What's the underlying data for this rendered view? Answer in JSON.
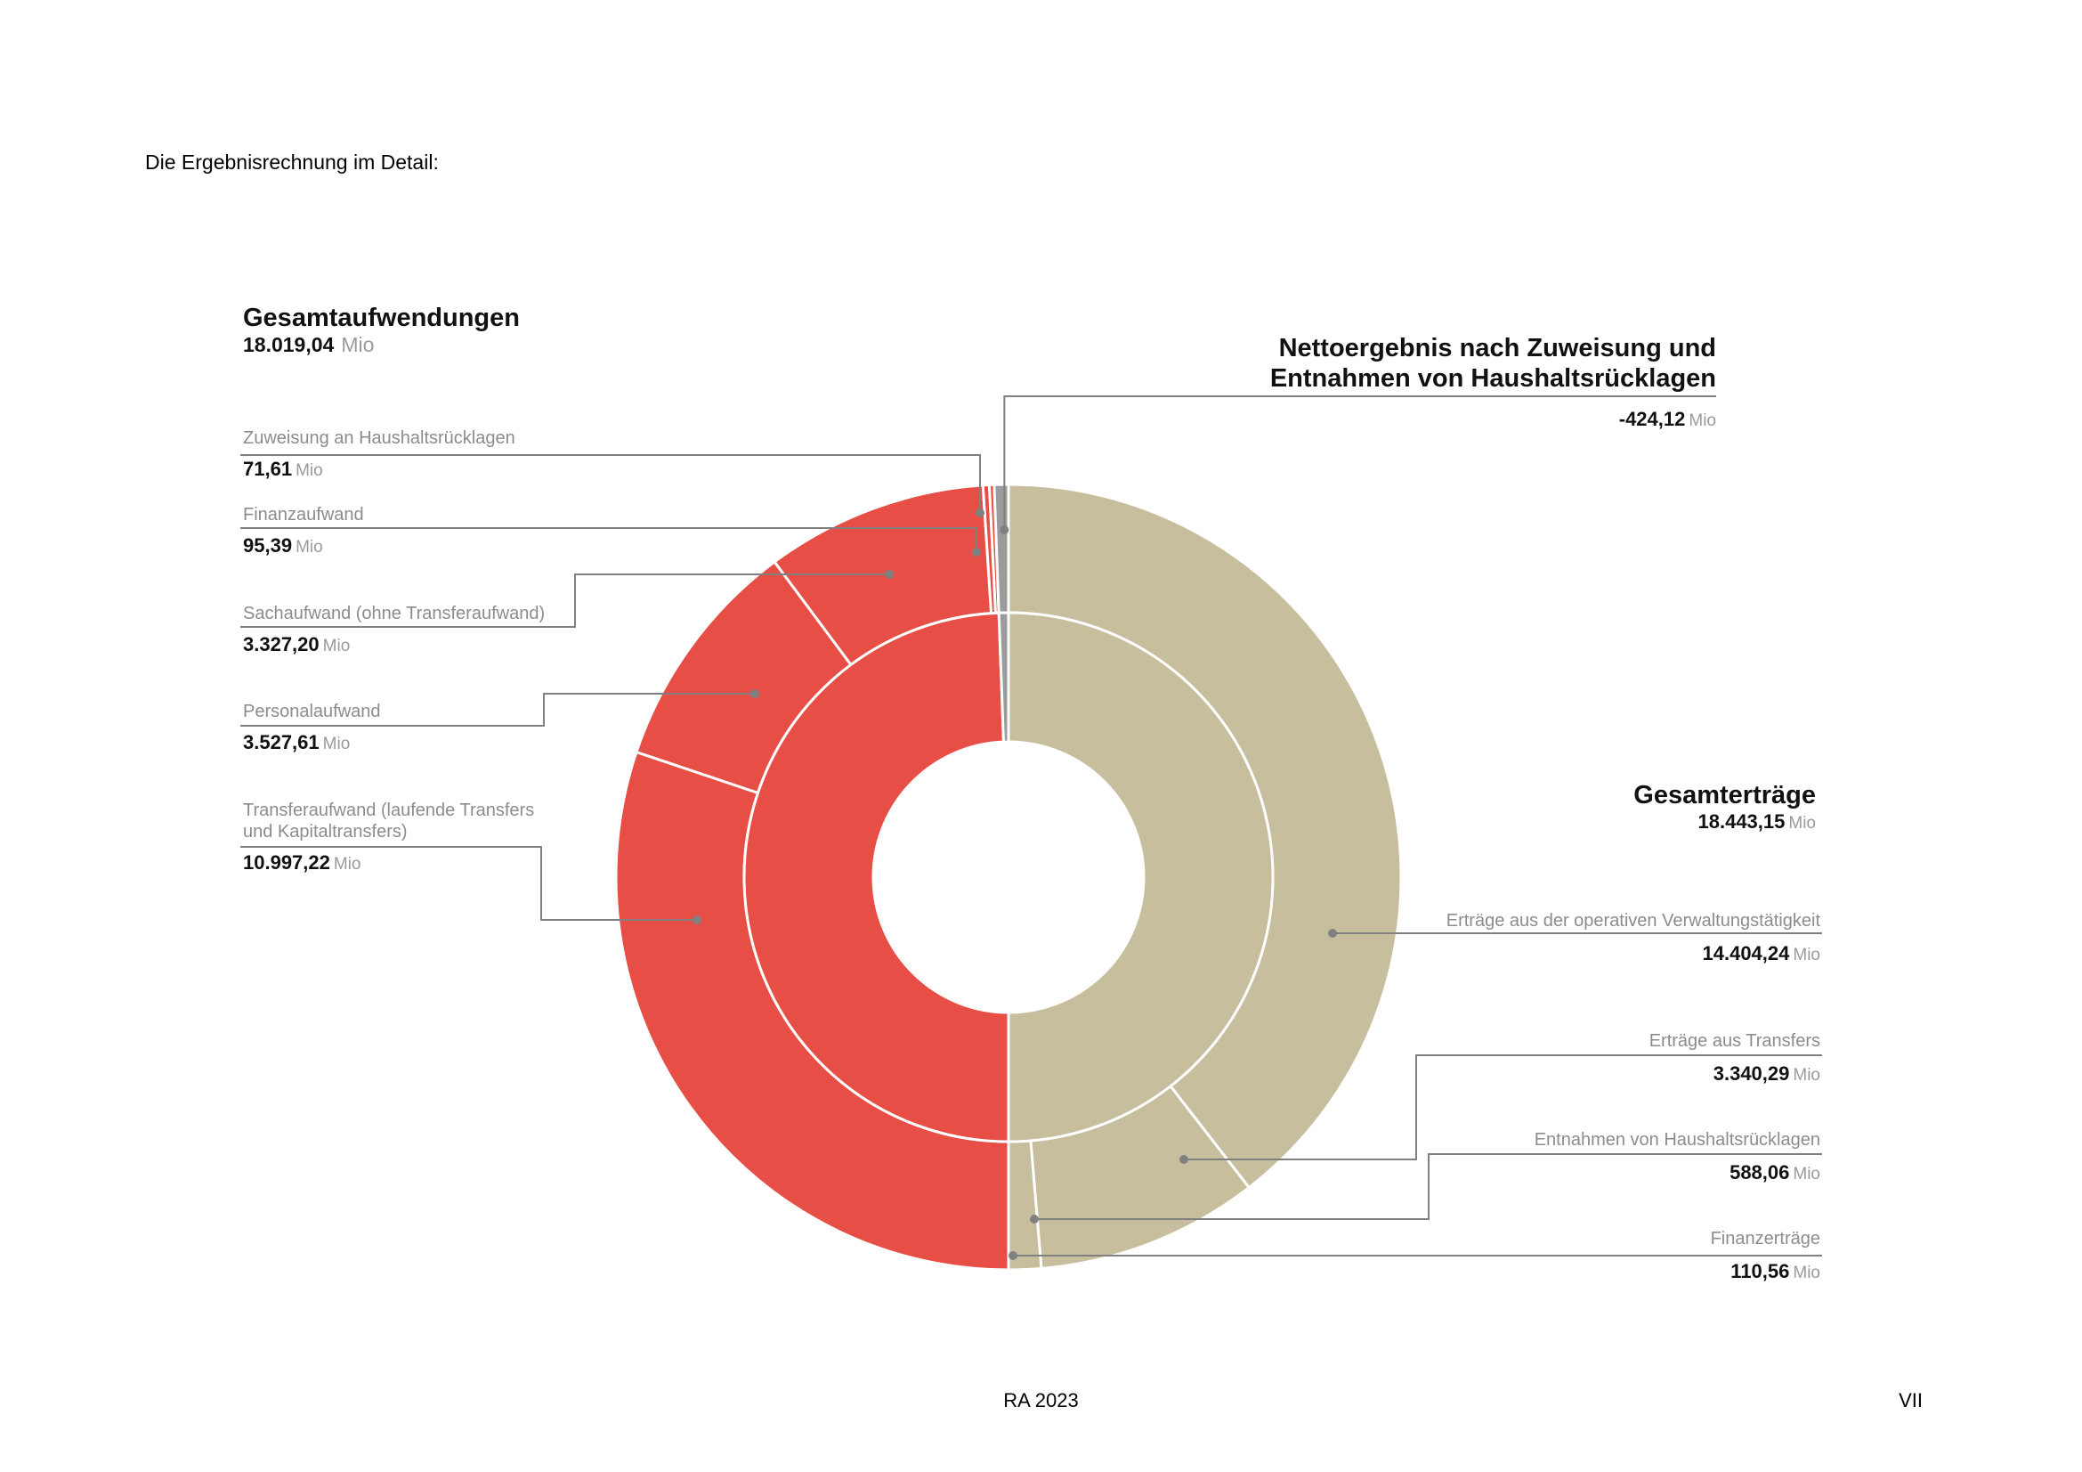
{
  "intro": "Die Ergebnisrechnung im Detail:",
  "footer": {
    "center": "RA 2023",
    "page": "VII"
  },
  "unit": "Mio",
  "colors": {
    "expense": "#E64E46",
    "income": "#C6BE9C",
    "net": "#9B9B9B",
    "leader": "#808080"
  },
  "chart_data": {
    "type": "sunburst",
    "title": "",
    "groups": [
      {
        "key": "expense",
        "label": "Gesamtaufwendungen",
        "value": 18019.04,
        "value_text": "18.019,04",
        "items": [
          {
            "label": "Zuweisung an Haushaltsrücklagen",
            "value": 71.61,
            "value_text": "71,61"
          },
          {
            "label": "Finanzaufwand",
            "value": 95.39,
            "value_text": "95,39"
          },
          {
            "label": "Sachaufwand (ohne Transferaufwand)",
            "value": 3327.2,
            "value_text": "3.327,20"
          },
          {
            "label": "Personalaufwand",
            "value": 3527.61,
            "value_text": "3.527,61"
          },
          {
            "label": "Transferaufwand (laufende Transfers und Kapitaltransfers)",
            "value": 10997.22,
            "value_text": "10.997,22"
          }
        ]
      },
      {
        "key": "net",
        "label": "Nettoergebnis nach Zuweisung und Entnahmen von Haushaltsrücklagen",
        "value": -424.12,
        "value_text": "-424,12"
      },
      {
        "key": "income",
        "label": "Gesamterträge",
        "value": 18443.15,
        "value_text": "18.443,15",
        "items": [
          {
            "label": "Erträge aus der operativen Verwaltungstätigkeit",
            "value": 14404.24,
            "value_text": "14.404,24"
          },
          {
            "label": "Erträge aus Transfers",
            "value": 3340.29,
            "value_text": "3.340,29"
          },
          {
            "label": "Entnahmen von Haushaltsrücklagen",
            "value": 588.06,
            "value_text": "588,06"
          },
          {
            "label": "Finanzerträge",
            "value": 110.56,
            "value_text": "110,56"
          }
        ]
      }
    ],
    "display": {
      "expense_title": "Gesamtaufwendungen",
      "net_title_line1": "Nettoergebnis nach Zuweisung und",
      "net_title_line2": "Entnahmen von Haushaltsrücklagen",
      "income_title": "Gesamterträge",
      "expense_labels": [
        [
          "Zuweisung an Haushaltsrücklagen"
        ],
        [
          "Finanzaufwand"
        ],
        [
          "Sachaufwand (ohne Transferaufwand)"
        ],
        [
          "Personalaufwand"
        ],
        [
          "Transferaufwand (laufende Transfers",
          "und Kapitaltransfers)"
        ]
      ]
    }
  }
}
